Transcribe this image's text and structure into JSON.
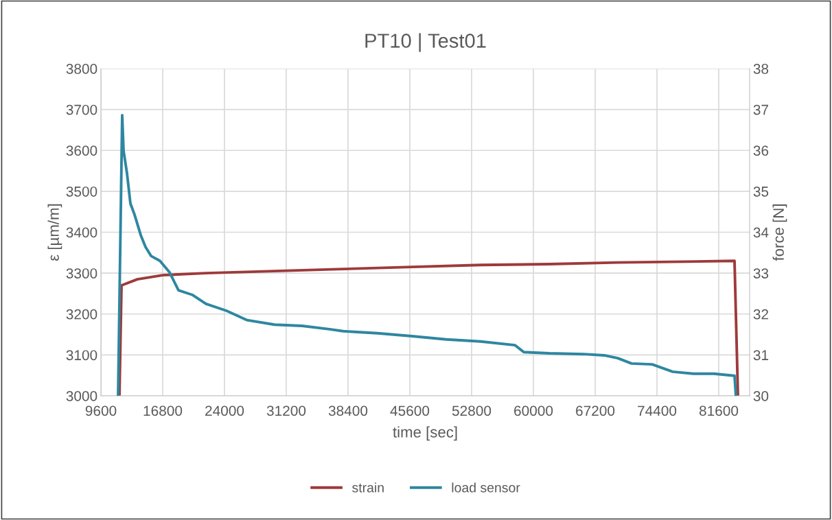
{
  "chart_data": {
    "type": "line",
    "title": "PT10 | Test01",
    "xlabel": "time [sec]",
    "ylabel": "ε [µm/m]",
    "y2label": "force [N]",
    "xlim": [
      9600,
      85200
    ],
    "xticks": [
      9600,
      16800,
      24000,
      31200,
      38400,
      45600,
      52800,
      60000,
      67200,
      74400,
      81600
    ],
    "ylim": [
      3000,
      3800
    ],
    "yticks": [
      3000,
      3100,
      3200,
      3300,
      3400,
      3500,
      3600,
      3700,
      3800
    ],
    "y2lim": [
      30,
      38
    ],
    "y2ticks": [
      30,
      31,
      32,
      33,
      34,
      35,
      36,
      37,
      38
    ],
    "grid": true,
    "legend": "bottom",
    "marker": "none",
    "line_style": "solid",
    "series": [
      {
        "name": "strain",
        "color": "#9e3a3a",
        "x": [
          11760,
          12000,
          13840,
          16800,
          21840,
          29840,
          37840,
          45840,
          53840,
          61840,
          69840,
          77840,
          83440,
          83840
        ],
        "values": [
          3000,
          3270,
          3285,
          3295,
          3300,
          3305,
          3310,
          3315,
          3320,
          3322,
          3326,
          3328,
          3330,
          3000
        ]
      },
      {
        "name": "load sensor",
        "color": "#2e87a0",
        "axis": "y2",
        "x": [
          11600,
          12080,
          12240,
          12640,
          13040,
          13520,
          14240,
          14800,
          15440,
          16480,
          17600,
          18640,
          20240,
          21840,
          24240,
          26640,
          29840,
          33040,
          36240,
          37840,
          41840,
          45840,
          49840,
          53840,
          57840,
          58880,
          61840,
          65840,
          68240,
          69840,
          71440,
          73840,
          76240,
          78640,
          81040,
          83440,
          83600
        ],
        "values": [
          30,
          36.86,
          35.99,
          35.44,
          34.7,
          34.43,
          33.93,
          33.64,
          33.42,
          33.3,
          33.02,
          32.58,
          32.47,
          32.25,
          32.08,
          31.85,
          31.74,
          31.71,
          31.63,
          31.58,
          31.53,
          31.46,
          31.38,
          31.33,
          31.24,
          31.07,
          31.04,
          31.02,
          30.99,
          30.92,
          30.79,
          30.77,
          30.59,
          30.54,
          30.54,
          30.49,
          30
        ]
      }
    ]
  }
}
